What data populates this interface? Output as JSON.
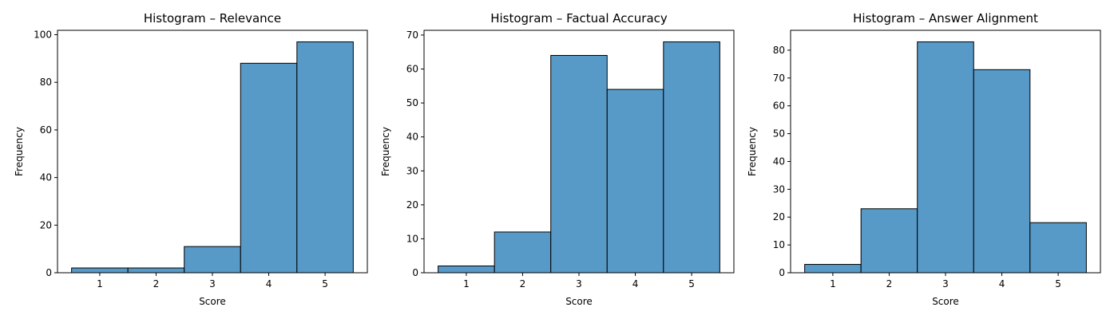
{
  "chart_data": [
    {
      "type": "bar",
      "title": "Histogram – Relevance",
      "xlabel": "Score",
      "ylabel": "Frequency",
      "categories": [
        "1",
        "2",
        "3",
        "4",
        "5"
      ],
      "values": [
        2,
        2,
        11,
        88,
        97
      ],
      "ylim": [
        0,
        101.85
      ],
      "yticks": [
        0,
        20,
        40,
        60,
        80,
        100
      ],
      "grid": false,
      "bar_color": "#5799c7"
    },
    {
      "type": "bar",
      "title": "Histogram – Factual Accuracy",
      "xlabel": "Score",
      "ylabel": "Frequency",
      "categories": [
        "1",
        "2",
        "3",
        "4",
        "5"
      ],
      "values": [
        2,
        12,
        64,
        54,
        68
      ],
      "ylim": [
        0,
        71.4
      ],
      "yticks": [
        0,
        10,
        20,
        30,
        40,
        50,
        60,
        70
      ],
      "grid": false,
      "bar_color": "#5799c7"
    },
    {
      "type": "bar",
      "title": "Histogram – Answer Alignment",
      "xlabel": "Score",
      "ylabel": "Frequency",
      "categories": [
        "1",
        "2",
        "3",
        "4",
        "5"
      ],
      "values": [
        3,
        23,
        83,
        73,
        18
      ],
      "ylim": [
        0,
        87.15
      ],
      "yticks": [
        0,
        10,
        20,
        30,
        40,
        50,
        60,
        70,
        80
      ],
      "grid": false,
      "bar_color": "#5799c7"
    }
  ]
}
